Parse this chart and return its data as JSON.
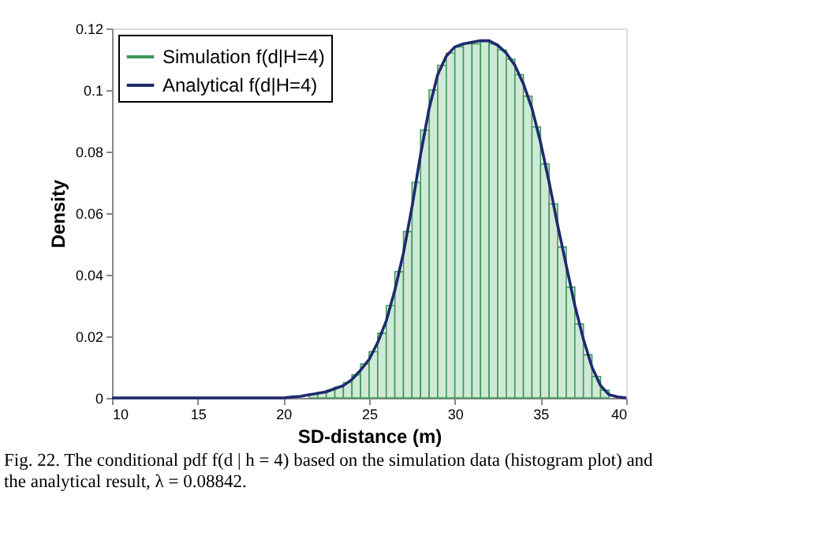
{
  "chart_data": {
    "type": "histogram",
    "xlabel": "SD-distance (m)",
    "ylabel": "Density",
    "xlim": [
      10,
      40
    ],
    "ylim": [
      0,
      0.12
    ],
    "xticks": [
      10,
      15,
      20,
      25,
      30,
      35,
      40
    ],
    "yticks": [
      0,
      0.02,
      0.04,
      0.06,
      0.08,
      0.1,
      0.12
    ],
    "legend": "top left",
    "bins": [
      20,
      20.5,
      21,
      21.5,
      22,
      22.5,
      23,
      23.5,
      24,
      24.5,
      25,
      25.5,
      26,
      26.5,
      27,
      27.5,
      28,
      28.5,
      29,
      29.5,
      30,
      30.5,
      31,
      31.5,
      32,
      32.5,
      33,
      33.5,
      34,
      34.5,
      35,
      35.5,
      36,
      36.5,
      37,
      37.5,
      38,
      38.5,
      39,
      39.5,
      40
    ],
    "series": [
      {
        "name": "Simulation f(d|H=4)",
        "color": "#3f9a5a",
        "values": [
          null,
          null,
          null,
          0.0012,
          0.0018,
          0.0025,
          0.0035,
          0.005,
          0.0075,
          0.011,
          0.015,
          0.021,
          0.03,
          0.041,
          0.054,
          0.07,
          0.087,
          0.1,
          0.108,
          0.112,
          0.114,
          0.115,
          0.115,
          0.116,
          0.115,
          0.113,
          0.11,
          0.105,
          0.098,
          0.088,
          0.076,
          0.063,
          0.049,
          0.036,
          0.024,
          0.014,
          0.007,
          0.0025,
          null,
          null
        ]
      },
      {
        "name": "Analytical f(d|H=4)",
        "type": "line",
        "color": "#1f2a6e",
        "x": [
          10,
          12,
          14,
          16,
          18,
          20,
          20.5,
          21,
          21.5,
          22,
          22.5,
          23,
          23.5,
          24,
          24.5,
          25,
          25.5,
          26,
          26.5,
          27,
          27.5,
          28,
          28.5,
          29,
          29.5,
          30,
          30.5,
          31,
          31.5,
          32,
          32.5,
          33,
          33.5,
          34,
          34.5,
          35,
          35.5,
          36,
          36.5,
          37,
          37.5,
          38,
          38.5,
          39,
          39.5,
          40
        ],
        "values": [
          0,
          0,
          0,
          0,
          0,
          0,
          0.0003,
          0.0005,
          0.001,
          0.0015,
          0.002,
          0.003,
          0.004,
          0.006,
          0.009,
          0.0125,
          0.018,
          0.025,
          0.035,
          0.047,
          0.062,
          0.079,
          0.094,
          0.105,
          0.111,
          0.114,
          0.115,
          0.1155,
          0.116,
          0.116,
          0.1145,
          0.112,
          0.108,
          0.102,
          0.094,
          0.083,
          0.07,
          0.056,
          0.043,
          0.03,
          0.019,
          0.01,
          0.004,
          0.001,
          0.0003,
          0
        ]
      }
    ],
    "annotations": [
      "Fig. 22. The conditional pdf f(d | h = 4) based on the simulation data (histogram plot) and the analytical result, λ = 0.08842."
    ]
  }
}
